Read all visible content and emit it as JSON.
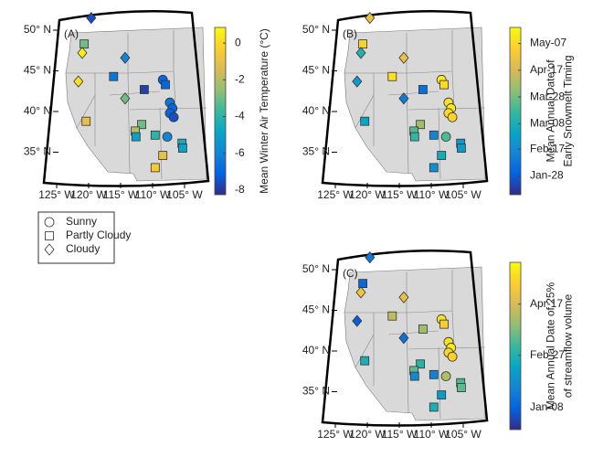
{
  "panels": [
    {
      "label": "(A)",
      "colorbar": {
        "label": [
          "Mean Winter Air Temperature (°C)"
        ],
        "lim": [
          -8.25,
          0.85
        ],
        "ticks": [
          0,
          -2,
          -4,
          -6,
          -8
        ]
      },
      "lat_ticks": [
        {
          "value": 50,
          "label": "50° N"
        },
        {
          "value": 45,
          "label": "45° N"
        },
        {
          "value": 40,
          "label": "40° N"
        },
        {
          "value": 35,
          "label": "35° N"
        }
      ],
      "lon_ticks": [
        {
          "value": -125,
          "label": "125° W"
        },
        {
          "value": -120,
          "label": "120° W"
        },
        {
          "value": -115,
          "label": "115° W"
        },
        {
          "value": -110,
          "label": "110° W"
        },
        {
          "value": -105,
          "label": "105° W"
        }
      ],
      "legend": [
        {
          "shape": "circle",
          "label": "Sunny"
        },
        {
          "shape": "square",
          "label": "Partly Cloudy"
        },
        {
          "shape": "diamond",
          "label": "Cloudy"
        }
      ],
      "markers": [
        {
          "lon": -119.6,
          "lat": 51.5,
          "shape": "diamond",
          "value": -7.5
        },
        {
          "lon": -120.7,
          "lat": 48.3,
          "shape": "square",
          "value": -3
        },
        {
          "lon": -121,
          "lat": 47.2,
          "shape": "diamond",
          "value": 0.5
        },
        {
          "lon": -114.3,
          "lat": 46.6,
          "shape": "diamond",
          "value": -6
        },
        {
          "lon": -121.6,
          "lat": 43.7,
          "shape": "diamond",
          "value": 0.2
        },
        {
          "lon": -116.1,
          "lat": 44.3,
          "shape": "square",
          "value": -6.5
        },
        {
          "lon": -108.4,
          "lat": 43.9,
          "shape": "circle",
          "value": -7
        },
        {
          "lon": -108,
          "lat": 43.3,
          "shape": "square",
          "value": -7
        },
        {
          "lon": -111.3,
          "lat": 42.7,
          "shape": "square",
          "value": -7.8
        },
        {
          "lon": -114.3,
          "lat": 41.6,
          "shape": "diamond",
          "value": -3
        },
        {
          "lon": -107.3,
          "lat": 41.1,
          "shape": "circle",
          "value": -6.5
        },
        {
          "lon": -106.9,
          "lat": 40.4,
          "shape": "circle",
          "value": -7
        },
        {
          "lon": -107.3,
          "lat": 39.8,
          "shape": "circle",
          "value": -7
        },
        {
          "lon": -106.7,
          "lat": 39.3,
          "shape": "circle",
          "value": -7.5
        },
        {
          "lon": -120.4,
          "lat": 38.8,
          "shape": "square",
          "value": -1
        },
        {
          "lon": -111.7,
          "lat": 38.4,
          "shape": "square",
          "value": -3
        },
        {
          "lon": -112.7,
          "lat": 37.6,
          "shape": "square",
          "value": -2
        },
        {
          "lon": -112.6,
          "lat": 36.9,
          "shape": "square",
          "value": -5
        },
        {
          "lon": -109.6,
          "lat": 37.1,
          "shape": "square",
          "value": -4
        },
        {
          "lon": -107.7,
          "lat": 36.9,
          "shape": "circle",
          "value": -6
        },
        {
          "lon": -105.4,
          "lat": 36.1,
          "shape": "square",
          "value": -4.5
        },
        {
          "lon": -105.3,
          "lat": 35.5,
          "shape": "square",
          "value": -5
        },
        {
          "lon": -108.4,
          "lat": 34.6,
          "shape": "square",
          "value": -1
        },
        {
          "lon": -109.6,
          "lat": 33.1,
          "shape": "square",
          "value": -0.5
        }
      ]
    },
    {
      "label": "(B)",
      "colorbar": {
        "label": [
          "Mean Annual Date of",
          "Early Snowmelt Timing"
        ],
        "lim": [
          14,
          139
        ],
        "ticks": [
          {
            "value": 127,
            "label": "May-07"
          },
          {
            "value": 107,
            "label": "Apr-17"
          },
          {
            "value": 87,
            "label": "Mar-28"
          },
          {
            "value": 67,
            "label": "Mar-08"
          },
          {
            "value": 48,
            "label": "Feb-17"
          },
          {
            "value": 28,
            "label": "Jan-28"
          }
        ]
      },
      "lat_ticks": [
        {
          "value": 50,
          "label": "50° N"
        },
        {
          "value": 45,
          "label": "45° N"
        },
        {
          "value": 40,
          "label": "40° N"
        },
        {
          "value": 35,
          "label": "35° N"
        }
      ],
      "lon_ticks": [
        {
          "value": -125,
          "label": "125° W"
        },
        {
          "value": -120,
          "label": "120° W"
        },
        {
          "value": -115,
          "label": "115° W"
        },
        {
          "value": -110,
          "label": "110° W"
        },
        {
          "value": -105,
          "label": "105° W"
        }
      ],
      "markers": [
        {
          "lon": -119.6,
          "lat": 51.5,
          "shape": "diamond",
          "value": 115
        },
        {
          "lon": -120.7,
          "lat": 48.3,
          "shape": "square",
          "value": 125
        },
        {
          "lon": -121,
          "lat": 47.2,
          "shape": "diamond",
          "value": 70
        },
        {
          "lon": -114.3,
          "lat": 46.6,
          "shape": "diamond",
          "value": 115
        },
        {
          "lon": -121.6,
          "lat": 43.7,
          "shape": "diamond",
          "value": 55
        },
        {
          "lon": -116.1,
          "lat": 44.3,
          "shape": "square",
          "value": 130
        },
        {
          "lon": -108.4,
          "lat": 43.9,
          "shape": "circle",
          "value": 132
        },
        {
          "lon": -108,
          "lat": 43.3,
          "shape": "square",
          "value": 128
        },
        {
          "lon": -111.3,
          "lat": 42.7,
          "shape": "square",
          "value": 35
        },
        {
          "lon": -114.3,
          "lat": 41.6,
          "shape": "diamond",
          "value": 40
        },
        {
          "lon": -107.3,
          "lat": 41.1,
          "shape": "circle",
          "value": 130
        },
        {
          "lon": -106.9,
          "lat": 40.4,
          "shape": "circle",
          "value": 132
        },
        {
          "lon": -107.3,
          "lat": 39.8,
          "shape": "circle",
          "value": 128
        },
        {
          "lon": -106.7,
          "lat": 39.3,
          "shape": "circle",
          "value": 125
        },
        {
          "lon": -120.4,
          "lat": 38.8,
          "shape": "square",
          "value": 60
        },
        {
          "lon": -111.7,
          "lat": 38.4,
          "shape": "square",
          "value": 95
        },
        {
          "lon": -112.7,
          "lat": 37.6,
          "shape": "square",
          "value": 80
        },
        {
          "lon": -112.6,
          "lat": 36.9,
          "shape": "square",
          "value": 75
        },
        {
          "lon": -109.6,
          "lat": 37.1,
          "shape": "square",
          "value": 45
        },
        {
          "lon": -107.7,
          "lat": 36.9,
          "shape": "circle",
          "value": 80
        },
        {
          "lon": -105.4,
          "lat": 36.1,
          "shape": "square",
          "value": 55
        },
        {
          "lon": -105.3,
          "lat": 35.5,
          "shape": "square",
          "value": 55
        },
        {
          "lon": -108.4,
          "lat": 34.6,
          "shape": "square",
          "value": 65
        },
        {
          "lon": -109.6,
          "lat": 33.1,
          "shape": "square",
          "value": 50
        }
      ]
    },
    {
      "label": "(C)",
      "colorbar": {
        "label": [
          "Mean Annual Date of 25%",
          "of streamflow volume"
        ],
        "lim": [
          -13,
          147
        ],
        "ticks": [
          {
            "value": 107,
            "label": "Apr-17"
          },
          {
            "value": 58,
            "label": "Feb-27"
          },
          {
            "value": 8,
            "label": "Jan-08"
          }
        ]
      },
      "lat_ticks": [
        {
          "value": 50,
          "label": "50° N"
        },
        {
          "value": 45,
          "label": "45° N"
        },
        {
          "value": 40,
          "label": "40° N"
        },
        {
          "value": 35,
          "label": "35° N"
        }
      ],
      "lon_ticks": [
        {
          "value": -125,
          "label": "125° W"
        },
        {
          "value": -120,
          "label": "120° W"
        },
        {
          "value": -115,
          "label": "115° W"
        },
        {
          "value": -110,
          "label": "110° W"
        },
        {
          "value": -105,
          "label": "105° W"
        }
      ],
      "markers": [
        {
          "lon": -119.6,
          "lat": 51.5,
          "shape": "diamond",
          "value": 20
        },
        {
          "lon": -120.7,
          "lat": 48.3,
          "shape": "square",
          "value": 10
        },
        {
          "lon": -121,
          "lat": 47.2,
          "shape": "diamond",
          "value": 120
        },
        {
          "lon": -114.3,
          "lat": 46.6,
          "shape": "diamond",
          "value": 115
        },
        {
          "lon": -121.6,
          "lat": 43.7,
          "shape": "diamond",
          "value": 5
        },
        {
          "lon": -116.1,
          "lat": 44.3,
          "shape": "square",
          "value": 100
        },
        {
          "lon": -108.4,
          "lat": 43.9,
          "shape": "circle",
          "value": 135
        },
        {
          "lon": -108,
          "lat": 43.3,
          "shape": "square",
          "value": 125
        },
        {
          "lon": -111.3,
          "lat": 42.7,
          "shape": "square",
          "value": 90
        },
        {
          "lon": -114.3,
          "lat": 41.6,
          "shape": "diamond",
          "value": 15
        },
        {
          "lon": -107.3,
          "lat": 41.1,
          "shape": "circle",
          "value": 135
        },
        {
          "lon": -106.9,
          "lat": 40.4,
          "shape": "circle",
          "value": 140
        },
        {
          "lon": -107.3,
          "lat": 39.8,
          "shape": "circle",
          "value": 130
        },
        {
          "lon": -106.7,
          "lat": 39.3,
          "shape": "circle",
          "value": 128
        },
        {
          "lon": -120.4,
          "lat": 38.8,
          "shape": "square",
          "value": 55
        },
        {
          "lon": -111.7,
          "lat": 38.4,
          "shape": "square",
          "value": 60
        },
        {
          "lon": -112.7,
          "lat": 37.6,
          "shape": "square",
          "value": 75
        },
        {
          "lon": -112.6,
          "lat": 36.9,
          "shape": "square",
          "value": 30
        },
        {
          "lon": -109.6,
          "lat": 37.1,
          "shape": "square",
          "value": 25
        },
        {
          "lon": -107.7,
          "lat": 36.9,
          "shape": "circle",
          "value": 95
        },
        {
          "lon": -105.4,
          "lat": 36.1,
          "shape": "square",
          "value": 70
        },
        {
          "lon": -105.3,
          "lat": 35.5,
          "shape": "square",
          "value": 75
        },
        {
          "lon": -108.4,
          "lat": 34.6,
          "shape": "square",
          "value": 40
        },
        {
          "lon": -109.6,
          "lat": 33.1,
          "shape": "square",
          "value": 55
        }
      ]
    }
  ]
}
